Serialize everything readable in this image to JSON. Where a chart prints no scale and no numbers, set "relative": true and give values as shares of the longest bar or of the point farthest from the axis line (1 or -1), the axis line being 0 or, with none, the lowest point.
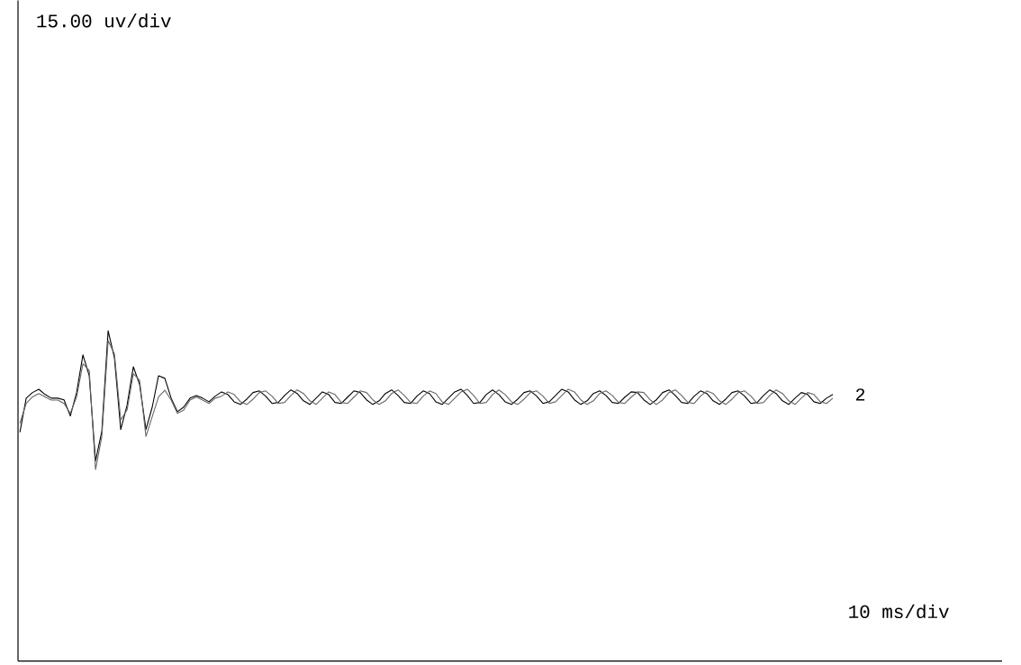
{
  "chart_data": {
    "type": "line",
    "relative": true,
    "legend": false,
    "line_style": "solid",
    "annotations": [
      "15.00 uv/div",
      "10 ms/div"
    ],
    "categories": [
      null,
      null,
      null,
      null,
      null,
      null,
      null,
      null,
      null,
      null,
      null,
      null,
      null,
      null,
      null,
      null,
      null,
      null,
      null,
      null,
      null,
      null,
      null,
      null,
      null,
      null,
      null,
      null,
      null,
      null,
      null,
      null,
      null,
      null,
      null,
      null,
      null,
      null,
      null,
      null,
      null,
      null,
      null,
      null,
      null,
      null,
      null,
      null,
      null,
      null,
      null,
      null,
      null,
      null,
      null,
      null,
      null,
      null,
      null,
      null,
      null,
      null,
      null,
      null,
      null,
      null,
      null,
      null,
      null,
      null,
      null,
      null,
      null,
      null,
      null,
      null,
      null,
      null,
      null,
      null,
      null,
      null,
      null,
      null,
      null,
      null,
      null,
      null,
      null,
      null,
      null,
      null,
      null,
      null,
      null,
      null,
      null,
      null,
      null,
      null,
      null,
      null,
      null,
      null,
      null,
      null,
      null,
      null,
      null,
      null,
      null,
      null,
      null,
      null,
      null,
      null,
      null,
      null,
      null,
      null,
      null,
      null,
      null,
      null,
      null,
      null,
      null,
      null,
      null,
      null
    ],
    "series": [
      {
        "name": "2",
        "color": "#000000",
        "values": [
          0.693,
          0.796,
          0.813,
          0.823,
          0.807,
          0.796,
          0.796,
          0.791,
          0.742,
          0.813,
          0.927,
          0.864,
          0.606,
          0.696,
          1.0,
          0.918,
          0.701,
          0.774,
          0.891,
          0.837,
          0.701,
          0.769,
          0.864,
          0.856,
          0.796,
          0.755,
          0.769,
          0.796,
          0.804,
          0.796,
          0.785,
          0.802,
          0.815,
          0.807,
          0.785,
          0.777,
          0.793,
          0.813,
          0.818,
          0.802,
          0.78,
          0.783,
          0.804,
          0.821,
          0.81,
          0.788,
          0.777,
          0.796,
          0.815,
          0.807,
          0.783,
          0.78,
          0.799,
          0.818,
          0.813,
          0.791,
          0.777,
          0.788,
          0.81,
          0.821,
          0.804,
          0.783,
          0.78,
          0.802,
          0.818,
          0.81,
          0.785,
          0.777,
          0.796,
          0.815,
          0.823,
          0.804,
          0.78,
          0.783,
          0.807,
          0.821,
          0.807,
          0.785,
          0.777,
          0.793,
          0.813,
          0.818,
          0.802,
          0.78,
          0.785,
          0.804,
          0.823,
          0.815,
          0.791,
          0.777,
          0.788,
          0.81,
          0.818,
          0.804,
          0.783,
          0.78,
          0.799,
          0.815,
          0.813,
          0.791,
          0.777,
          0.791,
          0.813,
          0.821,
          0.804,
          0.783,
          0.78,
          0.802,
          0.818,
          0.81,
          0.788,
          0.777,
          0.793,
          0.813,
          0.818,
          0.802,
          0.78,
          0.783,
          0.804,
          0.821,
          0.81,
          0.788,
          0.777,
          0.796,
          0.813,
          0.807,
          0.785,
          0.78,
          0.796,
          0.807
        ]
      },
      {
        "color": "#666666",
        "values": [
          0.72,
          0.78,
          0.8,
          0.81,
          0.8,
          0.79,
          0.79,
          0.78,
          0.75,
          0.8,
          0.9,
          0.88,
          0.58,
          0.68,
          0.97,
          0.93,
          0.73,
          0.76,
          0.87,
          0.85,
          0.68,
          0.74,
          0.8,
          0.82,
          0.79,
          0.75,
          0.76,
          0.79,
          0.8,
          0.79,
          0.78,
          0.796,
          0.802,
          0.815,
          0.807,
          0.785,
          0.777,
          0.793,
          0.813,
          0.818,
          0.802,
          0.78,
          0.783,
          0.804,
          0.821,
          0.81,
          0.788,
          0.777,
          0.796,
          0.815,
          0.807,
          0.783,
          0.78,
          0.799,
          0.818,
          0.813,
          0.791,
          0.777,
          0.788,
          0.81,
          0.821,
          0.804,
          0.783,
          0.78,
          0.802,
          0.818,
          0.81,
          0.785,
          0.777,
          0.796,
          0.815,
          0.823,
          0.804,
          0.78,
          0.783,
          0.807,
          0.821,
          0.807,
          0.785,
          0.777,
          0.793,
          0.813,
          0.818,
          0.802,
          0.78,
          0.785,
          0.804,
          0.823,
          0.815,
          0.791,
          0.777,
          0.788,
          0.81,
          0.818,
          0.804,
          0.783,
          0.78,
          0.799,
          0.815,
          0.813,
          0.791,
          0.777,
          0.791,
          0.813,
          0.821,
          0.804,
          0.783,
          0.78,
          0.802,
          0.818,
          0.81,
          0.788,
          0.777,
          0.793,
          0.813,
          0.818,
          0.802,
          0.78,
          0.783,
          0.804,
          0.821,
          0.81,
          0.788,
          0.777,
          0.796,
          0.813,
          0.807,
          0.785,
          0.78,
          0.796
        ]
      }
    ]
  }
}
